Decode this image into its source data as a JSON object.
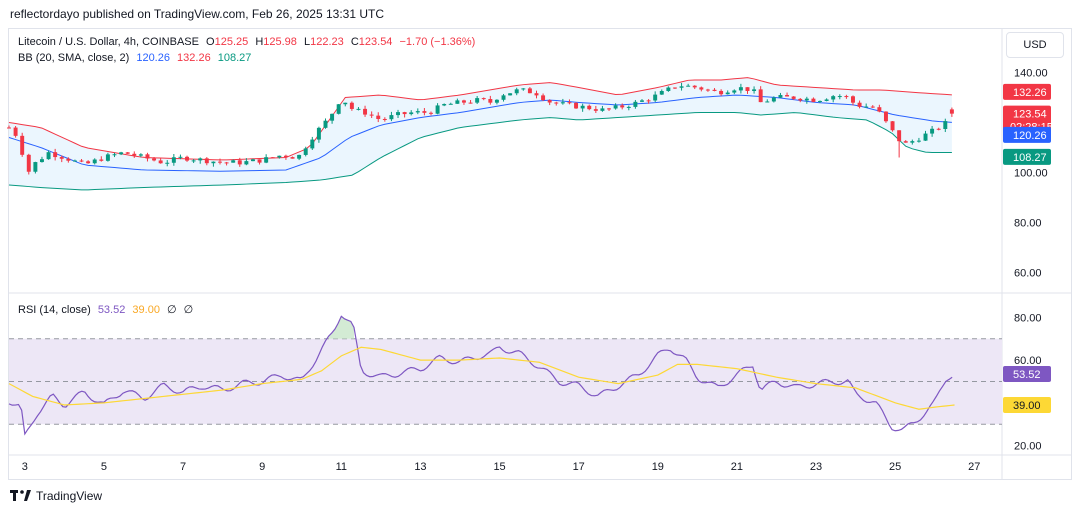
{
  "header": {
    "published": "reflectordayo published on TradingView.com, Feb 26, 2025 13:31 UTC"
  },
  "currency_button": "USD",
  "legend": {
    "symbol": "Litecoin / U.S. Dollar, 4h, COINBASE",
    "o_label": "O",
    "o": "125.25",
    "h_label": "H",
    "h": "125.98",
    "l_label": "L",
    "l": "122.23",
    "c_label": "C",
    "c": "123.54",
    "change": "−1.70 (−1.36%)",
    "bb_label": "BB (20, SMA, close, 2)",
    "bb_mid": "120.26",
    "bb_up": "132.26",
    "bb_low": "108.27",
    "rsi_label": "RSI (14, close)",
    "rsi_val": "53.52",
    "rsi_ma": "39.00",
    "rsi_extra1": "∅",
    "rsi_extra2": "∅"
  },
  "price_tags": {
    "upper": "132.26",
    "close": "123.54",
    "countdown": "02:28:15",
    "middle": "120.26",
    "lower": "108.27",
    "rsi": "53.52",
    "rsi_ma": "39.00"
  },
  "colors": {
    "up": "#089981",
    "down": "#f23645",
    "bb_mid": "#2962ff",
    "bb_up": "#f23645",
    "bb_low": "#089981",
    "bb_fill": "#e3f2fd",
    "rsi": "#7e57c2",
    "rsi_ma": "#fdd835",
    "rsi_band": "#ede7f6"
  },
  "footer": {
    "brand": "TradingView"
  },
  "chart_data": [
    {
      "type": "candlestick",
      "title": "Litecoin / U.S. Dollar, 4h, COINBASE",
      "yticks": [
        60,
        80,
        100,
        120,
        140
      ],
      "ylim": [
        53,
        145
      ],
      "xticks": [
        "3",
        "5",
        "7",
        "9",
        "11",
        "13",
        "15",
        "17",
        "19",
        "21",
        "23",
        "25",
        "27"
      ],
      "x_domain_days": [
        2.6,
        27.7
      ],
      "price_anchors_day_close": [
        [
          2.6,
          118
        ],
        [
          2.9,
          113
        ],
        [
          3.0,
          98
        ],
        [
          3.2,
          103
        ],
        [
          3.6,
          108
        ],
        [
          4.0,
          106
        ],
        [
          4.5,
          103
        ],
        [
          5.0,
          106
        ],
        [
          5.5,
          108
        ],
        [
          6.0,
          106
        ],
        [
          6.5,
          104
        ],
        [
          7.0,
          106
        ],
        [
          7.5,
          105
        ],
        [
          8.0,
          104
        ],
        [
          8.5,
          104
        ],
        [
          9.0,
          105
        ],
        [
          9.5,
          107
        ],
        [
          9.9,
          106
        ],
        [
          10.3,
          115
        ],
        [
          10.7,
          122
        ],
        [
          11.0,
          130
        ],
        [
          11.3,
          125
        ],
        [
          11.6,
          124
        ],
        [
          12.0,
          121
        ],
        [
          12.4,
          123
        ],
        [
          12.8,
          124
        ],
        [
          13.2,
          124
        ],
        [
          13.6,
          127
        ],
        [
          14.0,
          128
        ],
        [
          14.5,
          129
        ],
        [
          14.8,
          128
        ],
        [
          15.0,
          131
        ],
        [
          15.5,
          133
        ],
        [
          15.9,
          132
        ],
        [
          16.3,
          128
        ],
        [
          16.7,
          127
        ],
        [
          17.2,
          126
        ],
        [
          17.6,
          125
        ],
        [
          18.0,
          126
        ],
        [
          18.5,
          128
        ],
        [
          19.0,
          131
        ],
        [
          19.5,
          135
        ],
        [
          20.0,
          134
        ],
        [
          20.5,
          132
        ],
        [
          21.0,
          134
        ],
        [
          21.4,
          133
        ],
        [
          21.6,
          128
        ],
        [
          22.0,
          130
        ],
        [
          22.5,
          130
        ],
        [
          23.0,
          129
        ],
        [
          23.5,
          131
        ],
        [
          23.8,
          130
        ],
        [
          24.0,
          127
        ],
        [
          24.5,
          126
        ],
        [
          24.9,
          117
        ],
        [
          25.2,
          111
        ],
        [
          25.5,
          113
        ],
        [
          26.0,
          117
        ],
        [
          26.3,
          120
        ],
        [
          26.5,
          123.5
        ]
      ],
      "last": {
        "open": 125.25,
        "high": 125.98,
        "low": 122.23,
        "close": 123.54
      },
      "indicator": {
        "name": "Bollinger Bands (20, SMA, close, 2)",
        "upper": [
          [
            2.6,
            120
          ],
          [
            3.4,
            118
          ],
          [
            4.5,
            110
          ],
          [
            6,
            106
          ],
          [
            8,
            105
          ],
          [
            9.6,
            106
          ],
          [
            10.2,
            110
          ],
          [
            11.1,
            130
          ],
          [
            12,
            131
          ],
          [
            13,
            129
          ],
          [
            14,
            131
          ],
          [
            15.5,
            135
          ],
          [
            16.3,
            136
          ],
          [
            17,
            134
          ],
          [
            18,
            131
          ],
          [
            19,
            134
          ],
          [
            19.8,
            137
          ],
          [
            20.6,
            137
          ],
          [
            21.3,
            138
          ],
          [
            22,
            135
          ],
          [
            23,
            134
          ],
          [
            24,
            133
          ],
          [
            24.7,
            133
          ],
          [
            25.5,
            132
          ],
          [
            26,
            131.5
          ],
          [
            26.5,
            131
          ]
        ],
        "middle": [
          [
            2.6,
            114
          ],
          [
            3.4,
            110
          ],
          [
            4.5,
            103
          ],
          [
            6,
            101
          ],
          [
            8,
            100.5
          ],
          [
            9.6,
            101
          ],
          [
            10.5,
            106
          ],
          [
            11.2,
            114
          ],
          [
            12,
            119
          ],
          [
            13,
            122
          ],
          [
            14,
            124
          ],
          [
            15.5,
            128
          ],
          [
            16.3,
            129
          ],
          [
            17,
            128
          ],
          [
            18,
            127
          ],
          [
            19,
            128
          ],
          [
            20,
            130
          ],
          [
            21,
            131
          ],
          [
            22,
            130
          ],
          [
            23,
            128
          ],
          [
            24,
            127
          ],
          [
            25,
            123
          ],
          [
            26,
            120.5
          ],
          [
            26.5,
            120
          ]
        ],
        "lower": [
          [
            2.6,
            95
          ],
          [
            3.4,
            94
          ],
          [
            4.5,
            93
          ],
          [
            6,
            94
          ],
          [
            8,
            95
          ],
          [
            9.6,
            96
          ],
          [
            10.5,
            97
          ],
          [
            11.3,
            99
          ],
          [
            12,
            106
          ],
          [
            13,
            114
          ],
          [
            14,
            118
          ],
          [
            15.5,
            121
          ],
          [
            16.3,
            122
          ],
          [
            17,
            121
          ],
          [
            18,
            122
          ],
          [
            19,
            123
          ],
          [
            20,
            124
          ],
          [
            21,
            124
          ],
          [
            21.6,
            123
          ],
          [
            22.5,
            124
          ],
          [
            23.5,
            122
          ],
          [
            24.3,
            121
          ],
          [
            24.9,
            116
          ],
          [
            25.3,
            110
          ],
          [
            25.8,
            108
          ],
          [
            26.5,
            108
          ]
        ]
      }
    },
    {
      "type": "line",
      "title": "RSI (14, close)",
      "yticks": [
        20,
        40,
        60,
        80
      ],
      "ylim": [
        17,
        90
      ],
      "bands": [
        30,
        50,
        70
      ],
      "series": [
        {
          "name": "RSI",
          "points": [
            [
              2.6,
              41
            ],
            [
              2.9,
              38
            ],
            [
              3.0,
              24
            ],
            [
              3.3,
              35
            ],
            [
              3.7,
              43
            ],
            [
              4.0,
              39
            ],
            [
              4.5,
              45
            ],
            [
              5.0,
              39
            ],
            [
              5.5,
              46
            ],
            [
              6.0,
              42
            ],
            [
              6.5,
              48
            ],
            [
              7.0,
              45
            ],
            [
              7.5,
              48
            ],
            [
              8.0,
              46
            ],
            [
              8.5,
              49
            ],
            [
              9.0,
              50
            ],
            [
              9.5,
              53
            ],
            [
              10.0,
              50
            ],
            [
              10.5,
              65
            ],
            [
              10.8,
              73
            ],
            [
              11.0,
              82
            ],
            [
              11.3,
              76
            ],
            [
              11.5,
              55
            ],
            [
              12.0,
              52
            ],
            [
              12.5,
              54
            ],
            [
              13.0,
              56
            ],
            [
              13.5,
              61
            ],
            [
              14.0,
              59
            ],
            [
              14.5,
              62
            ],
            [
              14.8,
              63
            ],
            [
              15.0,
              66
            ],
            [
              15.5,
              63
            ],
            [
              16.0,
              57
            ],
            [
              16.5,
              50
            ],
            [
              17.0,
              48
            ],
            [
              17.5,
              43
            ],
            [
              18.0,
              48
            ],
            [
              18.5,
              53
            ],
            [
              19.0,
              62
            ],
            [
              19.3,
              66
            ],
            [
              19.7,
              60
            ],
            [
              20.0,
              52
            ],
            [
              20.5,
              47
            ],
            [
              21.0,
              53
            ],
            [
              21.4,
              58
            ],
            [
              21.6,
              46
            ],
            [
              22.0,
              50
            ],
            [
              22.5,
              47
            ],
            [
              23.0,
              49
            ],
            [
              23.5,
              50
            ],
            [
              23.8,
              50
            ],
            [
              24.0,
              44
            ],
            [
              24.5,
              40
            ],
            [
              24.9,
              29
            ],
            [
              25.2,
              27
            ],
            [
              25.5,
              31
            ],
            [
              26.0,
              40
            ],
            [
              26.3,
              52
            ],
            [
              26.5,
              53.5
            ]
          ]
        },
        {
          "name": "RSI-based MA",
          "points": [
            [
              2.6,
              49
            ],
            [
              3.2,
              43
            ],
            [
              4.0,
              39
            ],
            [
              5.0,
              40
            ],
            [
              6.0,
              42
            ],
            [
              7.0,
              44
            ],
            [
              8.0,
              46
            ],
            [
              9.0,
              49
            ],
            [
              10.0,
              51
            ],
            [
              10.5,
              55
            ],
            [
              11.0,
              62
            ],
            [
              11.5,
              66
            ],
            [
              12.0,
              65
            ],
            [
              13.0,
              60
            ],
            [
              14.0,
              60
            ],
            [
              15.0,
              61
            ],
            [
              16.0,
              59
            ],
            [
              17.0,
              52
            ],
            [
              18.0,
              49
            ],
            [
              19.0,
              53
            ],
            [
              19.5,
              58
            ],
            [
              20.0,
              58
            ],
            [
              21.0,
              56
            ],
            [
              22.0,
              52
            ],
            [
              23.0,
              49
            ],
            [
              24.0,
              47
            ],
            [
              25.0,
              40
            ],
            [
              25.6,
              37
            ],
            [
              26.0,
              38
            ],
            [
              26.5,
              39
            ]
          ]
        }
      ]
    }
  ]
}
